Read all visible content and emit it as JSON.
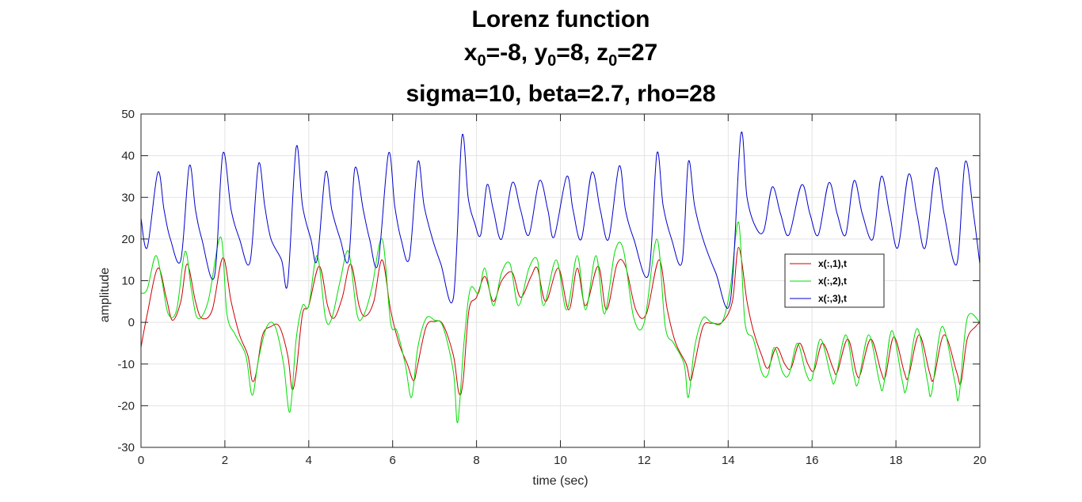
{
  "chart_data": {
    "type": "line",
    "title": {
      "line1": "Lorenz function",
      "line2": {
        "x_label": "x",
        "x_sub": "0",
        "x_val": "=-8, ",
        "y_label": "y",
        "y_sub": "0",
        "y_val": "=8, ",
        "z_label": "z",
        "z_sub": "0",
        "z_val": "=27"
      },
      "line3": "sigma=10, beta=2.7, rho=28"
    },
    "xlabel": "time (sec)",
    "ylabel": "amplitude",
    "xlim": [
      0,
      20
    ],
    "ylim": [
      -30,
      50
    ],
    "xticks": [
      0,
      2,
      4,
      6,
      8,
      10,
      12,
      14,
      16,
      18,
      20
    ],
    "yticks": [
      -30,
      -20,
      -10,
      0,
      10,
      20,
      30,
      40,
      50
    ],
    "grid": true,
    "legend_position": "right, inside axes",
    "series": [
      {
        "name": "x(:,1),t",
        "color": "#cc0000",
        "points": [
          [
            0,
            -6
          ],
          [
            0.15,
            2
          ],
          [
            0.4,
            13
          ],
          [
            0.6,
            6
          ],
          [
            0.75,
            0.5
          ],
          [
            0.95,
            5
          ],
          [
            1.1,
            14
          ],
          [
            1.3,
            5
          ],
          [
            1.45,
            1
          ],
          [
            1.7,
            3
          ],
          [
            1.95,
            15.5
          ],
          [
            2.15,
            5
          ],
          [
            2.35,
            -3
          ],
          [
            2.55,
            -8
          ],
          [
            2.65,
            -14
          ],
          [
            2.75,
            -12
          ],
          [
            2.9,
            -3
          ],
          [
            3.1,
            -1
          ],
          [
            3.3,
            -1
          ],
          [
            3.5,
            -8
          ],
          [
            3.6,
            -16
          ],
          [
            3.7,
            -12
          ],
          [
            3.85,
            2
          ],
          [
            4.0,
            4
          ],
          [
            4.25,
            13.5
          ],
          [
            4.45,
            4
          ],
          [
            4.6,
            1
          ],
          [
            4.8,
            6
          ],
          [
            5.0,
            14
          ],
          [
            5.2,
            4
          ],
          [
            5.35,
            1.5
          ],
          [
            5.55,
            5
          ],
          [
            5.75,
            15
          ],
          [
            5.95,
            3
          ],
          [
            6.15,
            -5
          ],
          [
            6.35,
            -10
          ],
          [
            6.5,
            -14
          ],
          [
            6.6,
            -10
          ],
          [
            6.8,
            -1
          ],
          [
            7.0,
            0.2
          ],
          [
            7.2,
            -0.5
          ],
          [
            7.45,
            -8
          ],
          [
            7.58,
            -17
          ],
          [
            7.68,
            -14
          ],
          [
            7.82,
            3
          ],
          [
            8.0,
            6
          ],
          [
            8.2,
            11
          ],
          [
            8.4,
            5
          ],
          [
            8.6,
            10
          ],
          [
            8.85,
            12
          ],
          [
            9.05,
            6
          ],
          [
            9.3,
            11
          ],
          [
            9.45,
            13
          ],
          [
            9.65,
            5
          ],
          [
            9.95,
            13
          ],
          [
            10.2,
            3
          ],
          [
            10.4,
            13
          ],
          [
            10.6,
            4
          ],
          [
            10.9,
            13.5
          ],
          [
            11.1,
            3
          ],
          [
            11.35,
            14
          ],
          [
            11.55,
            13.5
          ],
          [
            11.8,
            3
          ],
          [
            12.05,
            2
          ],
          [
            12.35,
            15
          ],
          [
            12.55,
            3
          ],
          [
            12.75,
            -5
          ],
          [
            13.0,
            -10
          ],
          [
            13.1,
            -14
          ],
          [
            13.2,
            -10
          ],
          [
            13.4,
            -1
          ],
          [
            13.6,
            -0.2
          ],
          [
            13.85,
            0
          ],
          [
            14.1,
            5
          ],
          [
            14.25,
            18
          ],
          [
            14.45,
            5
          ],
          [
            14.6,
            -2
          ],
          [
            14.8,
            -8
          ],
          [
            14.95,
            -11
          ],
          [
            15.15,
            -6
          ],
          [
            15.35,
            -10
          ],
          [
            15.5,
            -11
          ],
          [
            15.7,
            -5
          ],
          [
            15.9,
            -10
          ],
          [
            16.05,
            -11.5
          ],
          [
            16.25,
            -5
          ],
          [
            16.5,
            -11
          ],
          [
            16.6,
            -12
          ],
          [
            16.85,
            -4
          ],
          [
            17.05,
            -12
          ],
          [
            17.15,
            -12.5
          ],
          [
            17.4,
            -4
          ],
          [
            17.65,
            -12
          ],
          [
            17.75,
            -13
          ],
          [
            17.95,
            -3.5
          ],
          [
            18.2,
            -12
          ],
          [
            18.3,
            -13
          ],
          [
            18.55,
            -3
          ],
          [
            18.8,
            -12
          ],
          [
            18.9,
            -13.5
          ],
          [
            19.15,
            -3
          ],
          [
            19.45,
            -12
          ],
          [
            19.55,
            -14.5
          ],
          [
            19.7,
            -4
          ],
          [
            19.9,
            -1
          ],
          [
            20,
            0
          ]
        ]
      },
      {
        "name": "x(:,2),t",
        "color": "#00dd00",
        "points": [
          [
            0,
            7
          ],
          [
            0.15,
            8
          ],
          [
            0.35,
            16
          ],
          [
            0.5,
            10
          ],
          [
            0.65,
            2
          ],
          [
            0.85,
            3
          ],
          [
            1.05,
            17
          ],
          [
            1.2,
            8
          ],
          [
            1.35,
            1
          ],
          [
            1.6,
            5
          ],
          [
            1.9,
            20.5
          ],
          [
            2.05,
            2
          ],
          [
            2.25,
            -3
          ],
          [
            2.5,
            -8
          ],
          [
            2.65,
            -17.5
          ],
          [
            2.8,
            -9
          ],
          [
            3.0,
            -1
          ],
          [
            3.2,
            -1
          ],
          [
            3.4,
            -10
          ],
          [
            3.55,
            -21.5
          ],
          [
            3.7,
            -4
          ],
          [
            3.85,
            4
          ],
          [
            4.0,
            4
          ],
          [
            4.2,
            16
          ],
          [
            4.4,
            1
          ],
          [
            4.55,
            1
          ],
          [
            4.75,
            10
          ],
          [
            4.95,
            17
          ],
          [
            5.15,
            2
          ],
          [
            5.3,
            1.5
          ],
          [
            5.5,
            8
          ],
          [
            5.75,
            20
          ],
          [
            5.95,
            0
          ],
          [
            6.1,
            -2
          ],
          [
            6.3,
            -10
          ],
          [
            6.45,
            -18
          ],
          [
            6.6,
            -6
          ],
          [
            6.8,
            1
          ],
          [
            7.0,
            0.5
          ],
          [
            7.2,
            -1
          ],
          [
            7.45,
            -12
          ],
          [
            7.55,
            -24
          ],
          [
            7.7,
            -5
          ],
          [
            7.85,
            8
          ],
          [
            8.05,
            7
          ],
          [
            8.2,
            13
          ],
          [
            8.4,
            4
          ],
          [
            8.6,
            12
          ],
          [
            8.8,
            14
          ],
          [
            9.0,
            4
          ],
          [
            9.25,
            13
          ],
          [
            9.45,
            15
          ],
          [
            9.6,
            4
          ],
          [
            9.9,
            15
          ],
          [
            10.15,
            3
          ],
          [
            10.4,
            16
          ],
          [
            10.6,
            3
          ],
          [
            10.85,
            16
          ],
          [
            11.05,
            2
          ],
          [
            11.3,
            17
          ],
          [
            11.5,
            17.5
          ],
          [
            11.75,
            1
          ],
          [
            12.0,
            0
          ],
          [
            12.3,
            20
          ],
          [
            12.5,
            -1
          ],
          [
            12.7,
            -5
          ],
          [
            12.95,
            -10
          ],
          [
            13.05,
            -18
          ],
          [
            13.2,
            -6
          ],
          [
            13.4,
            1
          ],
          [
            13.6,
            0
          ],
          [
            13.85,
            0
          ],
          [
            14.05,
            8
          ],
          [
            14.25,
            24
          ],
          [
            14.4,
            0
          ],
          [
            14.6,
            -4
          ],
          [
            14.8,
            -12
          ],
          [
            14.95,
            -12.5
          ],
          [
            15.1,
            -6
          ],
          [
            15.3,
            -12
          ],
          [
            15.45,
            -12.5
          ],
          [
            15.65,
            -5
          ],
          [
            15.85,
            -12
          ],
          [
            16.0,
            -13.5
          ],
          [
            16.2,
            -4
          ],
          [
            16.45,
            -13
          ],
          [
            16.55,
            -14
          ],
          [
            16.8,
            -3
          ],
          [
            17.0,
            -13
          ],
          [
            17.1,
            -14.5
          ],
          [
            17.35,
            -3
          ],
          [
            17.6,
            -14
          ],
          [
            17.7,
            -15.5
          ],
          [
            17.9,
            -2
          ],
          [
            18.15,
            -14
          ],
          [
            18.25,
            -16
          ],
          [
            18.5,
            -1.5
          ],
          [
            18.75,
            -14
          ],
          [
            18.85,
            -17
          ],
          [
            19.1,
            -1
          ],
          [
            19.4,
            -14
          ],
          [
            19.5,
            -18
          ],
          [
            19.7,
            1
          ],
          [
            20,
            0
          ]
        ]
      },
      {
        "name": "x(:,3),t",
        "color": "#0000cc",
        "points": [
          [
            0,
            25
          ],
          [
            0.15,
            18
          ],
          [
            0.4,
            36
          ],
          [
            0.55,
            27
          ],
          [
            0.7,
            20
          ],
          [
            0.95,
            15
          ],
          [
            1.15,
            37.5
          ],
          [
            1.3,
            27
          ],
          [
            1.45,
            20
          ],
          [
            1.75,
            11
          ],
          [
            1.95,
            40.5
          ],
          [
            2.15,
            27
          ],
          [
            2.35,
            20
          ],
          [
            2.6,
            14.5
          ],
          [
            2.8,
            38
          ],
          [
            2.95,
            28
          ],
          [
            3.1,
            20
          ],
          [
            3.35,
            15
          ],
          [
            3.5,
            9.5
          ],
          [
            3.7,
            42
          ],
          [
            3.85,
            28
          ],
          [
            4.05,
            20
          ],
          [
            4.2,
            15
          ],
          [
            4.4,
            36
          ],
          [
            4.55,
            27
          ],
          [
            4.75,
            20
          ],
          [
            4.95,
            15
          ],
          [
            5.1,
            37
          ],
          [
            5.3,
            27
          ],
          [
            5.45,
            20
          ],
          [
            5.65,
            14
          ],
          [
            5.9,
            40.5
          ],
          [
            6.05,
            28
          ],
          [
            6.2,
            20
          ],
          [
            6.4,
            15.5
          ],
          [
            6.6,
            38.5
          ],
          [
            6.75,
            28
          ],
          [
            6.95,
            20
          ],
          [
            7.15,
            14
          ],
          [
            7.45,
            6
          ],
          [
            7.65,
            44.5
          ],
          [
            7.8,
            30
          ],
          [
            7.95,
            24
          ],
          [
            8.1,
            21
          ],
          [
            8.25,
            33
          ],
          [
            8.4,
            27
          ],
          [
            8.6,
            20
          ],
          [
            8.85,
            33.5
          ],
          [
            9.05,
            27
          ],
          [
            9.25,
            21
          ],
          [
            9.5,
            34
          ],
          [
            9.7,
            27
          ],
          [
            9.85,
            20.5
          ],
          [
            10.15,
            35
          ],
          [
            10.3,
            27
          ],
          [
            10.5,
            20
          ],
          [
            10.75,
            36
          ],
          [
            10.95,
            27
          ],
          [
            11.15,
            20
          ],
          [
            11.4,
            37.5
          ],
          [
            11.55,
            27
          ],
          [
            11.75,
            20
          ],
          [
            12.1,
            11.5
          ],
          [
            12.3,
            40.5
          ],
          [
            12.45,
            28
          ],
          [
            12.65,
            20
          ],
          [
            12.9,
            14.5
          ],
          [
            13.05,
            38.5
          ],
          [
            13.2,
            28
          ],
          [
            13.4,
            20
          ],
          [
            13.7,
            12
          ],
          [
            14.05,
            5
          ],
          [
            14.3,
            45
          ],
          [
            14.45,
            30
          ],
          [
            14.65,
            23
          ],
          [
            14.85,
            22
          ],
          [
            15.05,
            32.5
          ],
          [
            15.25,
            26
          ],
          [
            15.45,
            21
          ],
          [
            15.75,
            33
          ],
          [
            15.95,
            26
          ],
          [
            16.15,
            21
          ],
          [
            16.4,
            33.5
          ],
          [
            16.6,
            26
          ],
          [
            16.8,
            21
          ],
          [
            17.0,
            34
          ],
          [
            17.2,
            26
          ],
          [
            17.45,
            20
          ],
          [
            17.65,
            35
          ],
          [
            17.85,
            26
          ],
          [
            18.05,
            18
          ],
          [
            18.3,
            35.5
          ],
          [
            18.5,
            26
          ],
          [
            18.7,
            18
          ],
          [
            18.95,
            37
          ],
          [
            19.15,
            26
          ],
          [
            19.45,
            14
          ],
          [
            19.65,
            38.5
          ],
          [
            19.85,
            26
          ],
          [
            20,
            14
          ]
        ]
      }
    ]
  }
}
